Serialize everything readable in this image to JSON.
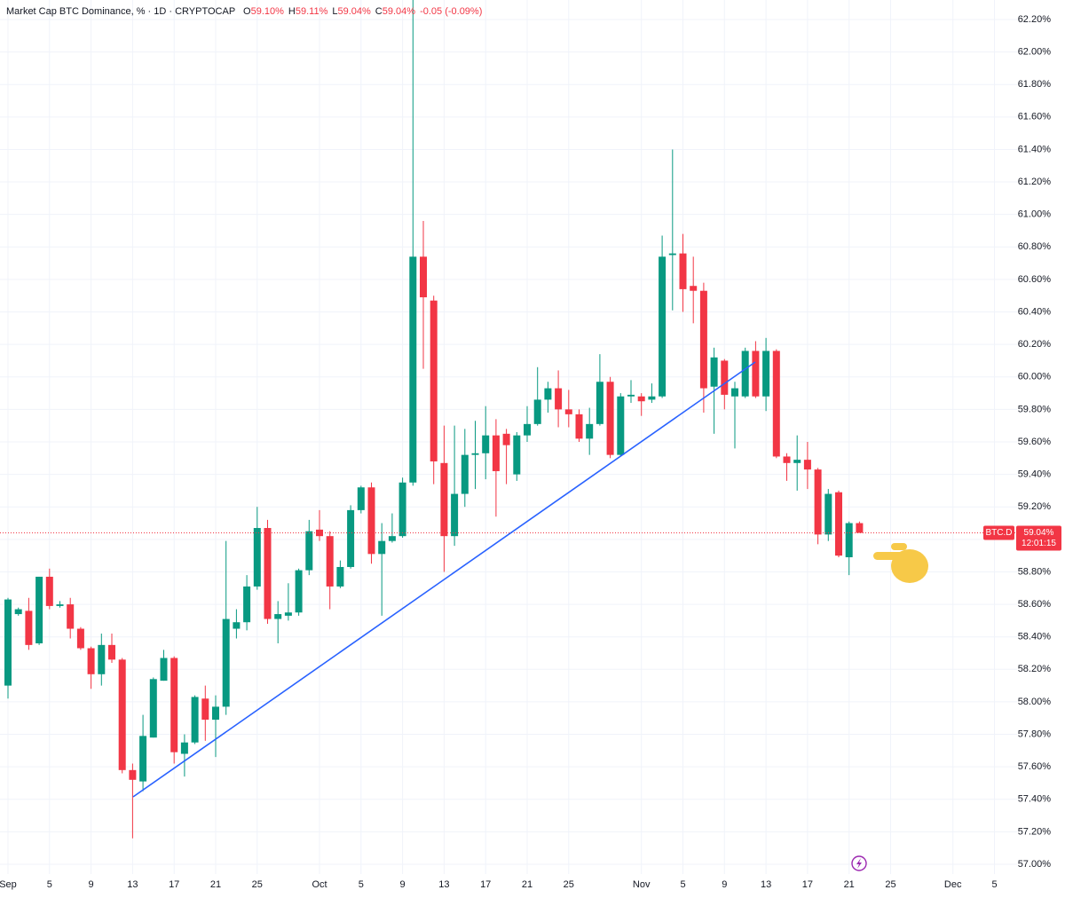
{
  "chart_data": {
    "type": "candlestick",
    "title": "Market Cap BTC Dominance, % · 1D · CRYPTOCAP",
    "legend": [
      {
        "key": "O",
        "value": "59.10%"
      },
      {
        "key": "H",
        "value": "59.11%"
      },
      {
        "key": "L",
        "value": "59.04%"
      },
      {
        "key": "C",
        "value": "59.04%"
      }
    ],
    "change": "-0.05 (-0.09%)",
    "up_color": "#089981",
    "down_color": "#f23645",
    "grid": true,
    "price_label": {
      "symbol": "BTC.D",
      "value_label": "59.04%",
      "countdown": "12:01:15"
    },
    "x": [
      "09-01",
      "09-02",
      "09-03",
      "09-04",
      "09-05",
      "09-06",
      "09-07",
      "09-08",
      "09-09",
      "09-10",
      "09-11",
      "09-12",
      "09-13",
      "09-14",
      "09-15",
      "09-16",
      "09-17",
      "09-18",
      "09-19",
      "09-20",
      "09-21",
      "09-22",
      "09-23",
      "09-24",
      "09-25",
      "09-26",
      "09-27",
      "09-28",
      "09-29",
      "09-30",
      "10-01",
      "10-02",
      "10-03",
      "10-04",
      "10-05",
      "10-06",
      "10-07",
      "10-08",
      "10-09",
      "10-10",
      "10-11",
      "10-12",
      "10-13",
      "10-14",
      "10-15",
      "10-16",
      "10-17",
      "10-18",
      "10-19",
      "10-20",
      "10-21",
      "10-22",
      "10-23",
      "10-24",
      "10-25",
      "10-26",
      "10-27",
      "10-28",
      "10-29",
      "10-30",
      "10-31",
      "11-01",
      "11-02",
      "11-03",
      "11-04",
      "11-05",
      "11-06",
      "11-07",
      "11-08",
      "11-09",
      "11-10",
      "11-11",
      "11-12",
      "11-13",
      "11-14",
      "11-15",
      "11-16",
      "11-17",
      "11-18",
      "11-19",
      "11-20",
      "11-21",
      "11-22"
    ],
    "open": [
      58.1,
      58.54,
      58.56,
      58.36,
      58.77,
      58.59,
      58.6,
      58.45,
      58.33,
      58.17,
      58.35,
      58.26,
      57.58,
      57.51,
      57.78,
      58.13,
      58.27,
      57.68,
      57.75,
      58.02,
      57.89,
      57.97,
      58.45,
      58.49,
      58.71,
      59.07,
      58.51,
      58.53,
      58.55,
      58.81,
      59.06,
      59.02,
      58.71,
      58.83,
      59.18,
      59.32,
      58.91,
      58.99,
      59.02,
      59.35,
      60.74,
      60.47,
      59.47,
      59.02,
      59.28,
      59.52,
      59.53,
      59.64,
      59.65,
      59.4,
      59.64,
      59.71,
      59.86,
      59.93,
      59.8,
      59.77,
      59.62,
      59.71,
      59.97,
      59.52,
      59.88,
      59.88,
      59.86,
      59.88,
      60.75,
      60.76,
      60.56,
      60.53,
      59.94,
      60.1,
      59.88,
      59.88,
      60.16,
      59.88,
      60.16,
      59.51,
      59.47,
      59.49,
      59.43,
      59.03,
      59.29,
      58.89,
      59.1
    ],
    "high": [
      58.64,
      58.58,
      58.64,
      58.77,
      58.82,
      58.62,
      58.64,
      58.46,
      58.34,
      58.42,
      58.42,
      58.27,
      57.62,
      57.92,
      58.15,
      58.32,
      58.28,
      57.8,
      58.04,
      58.1,
      58.04,
      58.99,
      58.57,
      58.78,
      59.2,
      59.12,
      58.62,
      58.73,
      58.82,
      59.12,
      59.18,
      59.05,
      58.87,
      59.21,
      59.33,
      59.35,
      59.1,
      59.16,
      59.38,
      62.32,
      60.96,
      60.5,
      59.7,
      59.7,
      59.68,
      59.73,
      59.82,
      59.74,
      59.68,
      59.66,
      59.82,
      60.06,
      59.97,
      60.04,
      59.92,
      59.8,
      59.81,
      60.14,
      60.0,
      59.9,
      59.98,
      59.9,
      59.96,
      60.87,
      61.4,
      60.88,
      60.74,
      60.58,
      60.18,
      60.11,
      59.97,
      60.18,
      60.22,
      60.24,
      60.17,
      59.53,
      59.64,
      59.6,
      59.44,
      59.31,
      59.3,
      59.11,
      59.11
    ],
    "low": [
      58.02,
      58.53,
      58.32,
      58.35,
      58.57,
      58.58,
      58.39,
      58.32,
      58.08,
      58.1,
      58.24,
      57.56,
      57.16,
      57.45,
      57.78,
      58.13,
      57.62,
      57.54,
      57.74,
      57.76,
      57.66,
      57.92,
      58.39,
      58.44,
      58.69,
      58.48,
      58.36,
      58.5,
      58.53,
      58.78,
      58.99,
      58.57,
      58.7,
      58.82,
      59.16,
      58.85,
      58.53,
      58.98,
      59.01,
      59.33,
      60.05,
      59.34,
      58.8,
      58.96,
      59.2,
      59.31,
      59.37,
      59.14,
      59.34,
      59.36,
      59.6,
      59.7,
      59.78,
      59.69,
      59.69,
      59.6,
      59.52,
      59.7,
      59.5,
      59.51,
      59.84,
      59.76,
      59.84,
      59.87,
      60.41,
      60.4,
      60.33,
      59.78,
      59.65,
      59.8,
      59.56,
      59.87,
      59.87,
      59.79,
      59.5,
      59.36,
      59.3,
      59.31,
      58.97,
      58.99,
      58.89,
      58.78,
      59.04
    ],
    "close": [
      58.63,
      58.57,
      58.35,
      58.77,
      58.59,
      58.6,
      58.45,
      58.33,
      58.17,
      58.35,
      58.26,
      57.58,
      57.52,
      57.79,
      58.14,
      58.27,
      57.69,
      57.75,
      58.03,
      57.89,
      57.97,
      58.51,
      58.49,
      58.71,
      59.07,
      58.51,
      58.54,
      58.55,
      58.81,
      59.05,
      59.02,
      58.71,
      58.83,
      59.18,
      59.32,
      58.91,
      58.99,
      59.02,
      59.35,
      60.74,
      60.49,
      59.48,
      59.02,
      59.28,
      59.52,
      59.53,
      59.64,
      59.42,
      59.58,
      59.64,
      59.71,
      59.86,
      59.93,
      59.8,
      59.77,
      59.62,
      59.71,
      59.97,
      59.52,
      59.88,
      59.89,
      59.85,
      59.88,
      60.74,
      60.76,
      60.54,
      60.53,
      59.93,
      60.12,
      59.89,
      59.93,
      60.16,
      59.88,
      60.16,
      59.51,
      59.47,
      59.49,
      59.43,
      59.03,
      59.28,
      58.9,
      59.1,
      59.04
    ],
    "xlim": [
      "08-31",
      "12-08"
    ],
    "xticks": [
      {
        "value": "09-01",
        "label": "Sep"
      },
      {
        "value": "09-05",
        "label": "5"
      },
      {
        "value": "09-09",
        "label": "9"
      },
      {
        "value": "09-13",
        "label": "13"
      },
      {
        "value": "09-17",
        "label": "17"
      },
      {
        "value": "09-21",
        "label": "21"
      },
      {
        "value": "09-25",
        "label": "25"
      },
      {
        "value": "10-01",
        "label": "Oct"
      },
      {
        "value": "10-05",
        "label": "5"
      },
      {
        "value": "10-09",
        "label": "9"
      },
      {
        "value": "10-13",
        "label": "13"
      },
      {
        "value": "10-17",
        "label": "17"
      },
      {
        "value": "10-21",
        "label": "21"
      },
      {
        "value": "10-25",
        "label": "25"
      },
      {
        "value": "11-01",
        "label": "Nov"
      },
      {
        "value": "11-05",
        "label": "5"
      },
      {
        "value": "11-09",
        "label": "9"
      },
      {
        "value": "11-13",
        "label": "13"
      },
      {
        "value": "11-17",
        "label": "17"
      },
      {
        "value": "11-21",
        "label": "21"
      },
      {
        "value": "11-25",
        "label": "25"
      },
      {
        "value": "12-01",
        "label": "Dec"
      },
      {
        "value": "12-05",
        "label": "5"
      }
    ],
    "ylim": [
      56.94,
      62.32
    ],
    "yticks": [
      {
        "value": 57.0,
        "label": "57.00%"
      },
      {
        "value": 57.2,
        "label": "57.20%"
      },
      {
        "value": 57.4,
        "label": "57.40%"
      },
      {
        "value": 57.6,
        "label": "57.60%"
      },
      {
        "value": 57.8,
        "label": "57.80%"
      },
      {
        "value": 58.0,
        "label": "58.00%"
      },
      {
        "value": 58.2,
        "label": "58.20%"
      },
      {
        "value": 58.4,
        "label": "58.40%"
      },
      {
        "value": 58.6,
        "label": "58.60%"
      },
      {
        "value": 58.8,
        "label": "58.80%"
      },
      {
        "value": 59.0,
        "label": "59.00%"
      },
      {
        "value": 59.2,
        "label": "59.20%"
      },
      {
        "value": 59.4,
        "label": "59.40%"
      },
      {
        "value": 59.6,
        "label": "59.60%"
      },
      {
        "value": 59.8,
        "label": "59.80%"
      },
      {
        "value": 60.0,
        "label": "60.00%"
      },
      {
        "value": 60.2,
        "label": "60.20%"
      },
      {
        "value": 60.4,
        "label": "60.40%"
      },
      {
        "value": 60.6,
        "label": "60.60%"
      },
      {
        "value": 60.8,
        "label": "60.80%"
      },
      {
        "value": 61.0,
        "label": "61.00%"
      },
      {
        "value": 61.2,
        "label": "61.20%"
      },
      {
        "value": 61.4,
        "label": "61.40%"
      },
      {
        "value": 61.6,
        "label": "61.60%"
      },
      {
        "value": 61.8,
        "label": "61.80%"
      },
      {
        "value": 62.0,
        "label": "62.00%"
      },
      {
        "value": 62.2,
        "label": "62.20%"
      }
    ]
  }
}
